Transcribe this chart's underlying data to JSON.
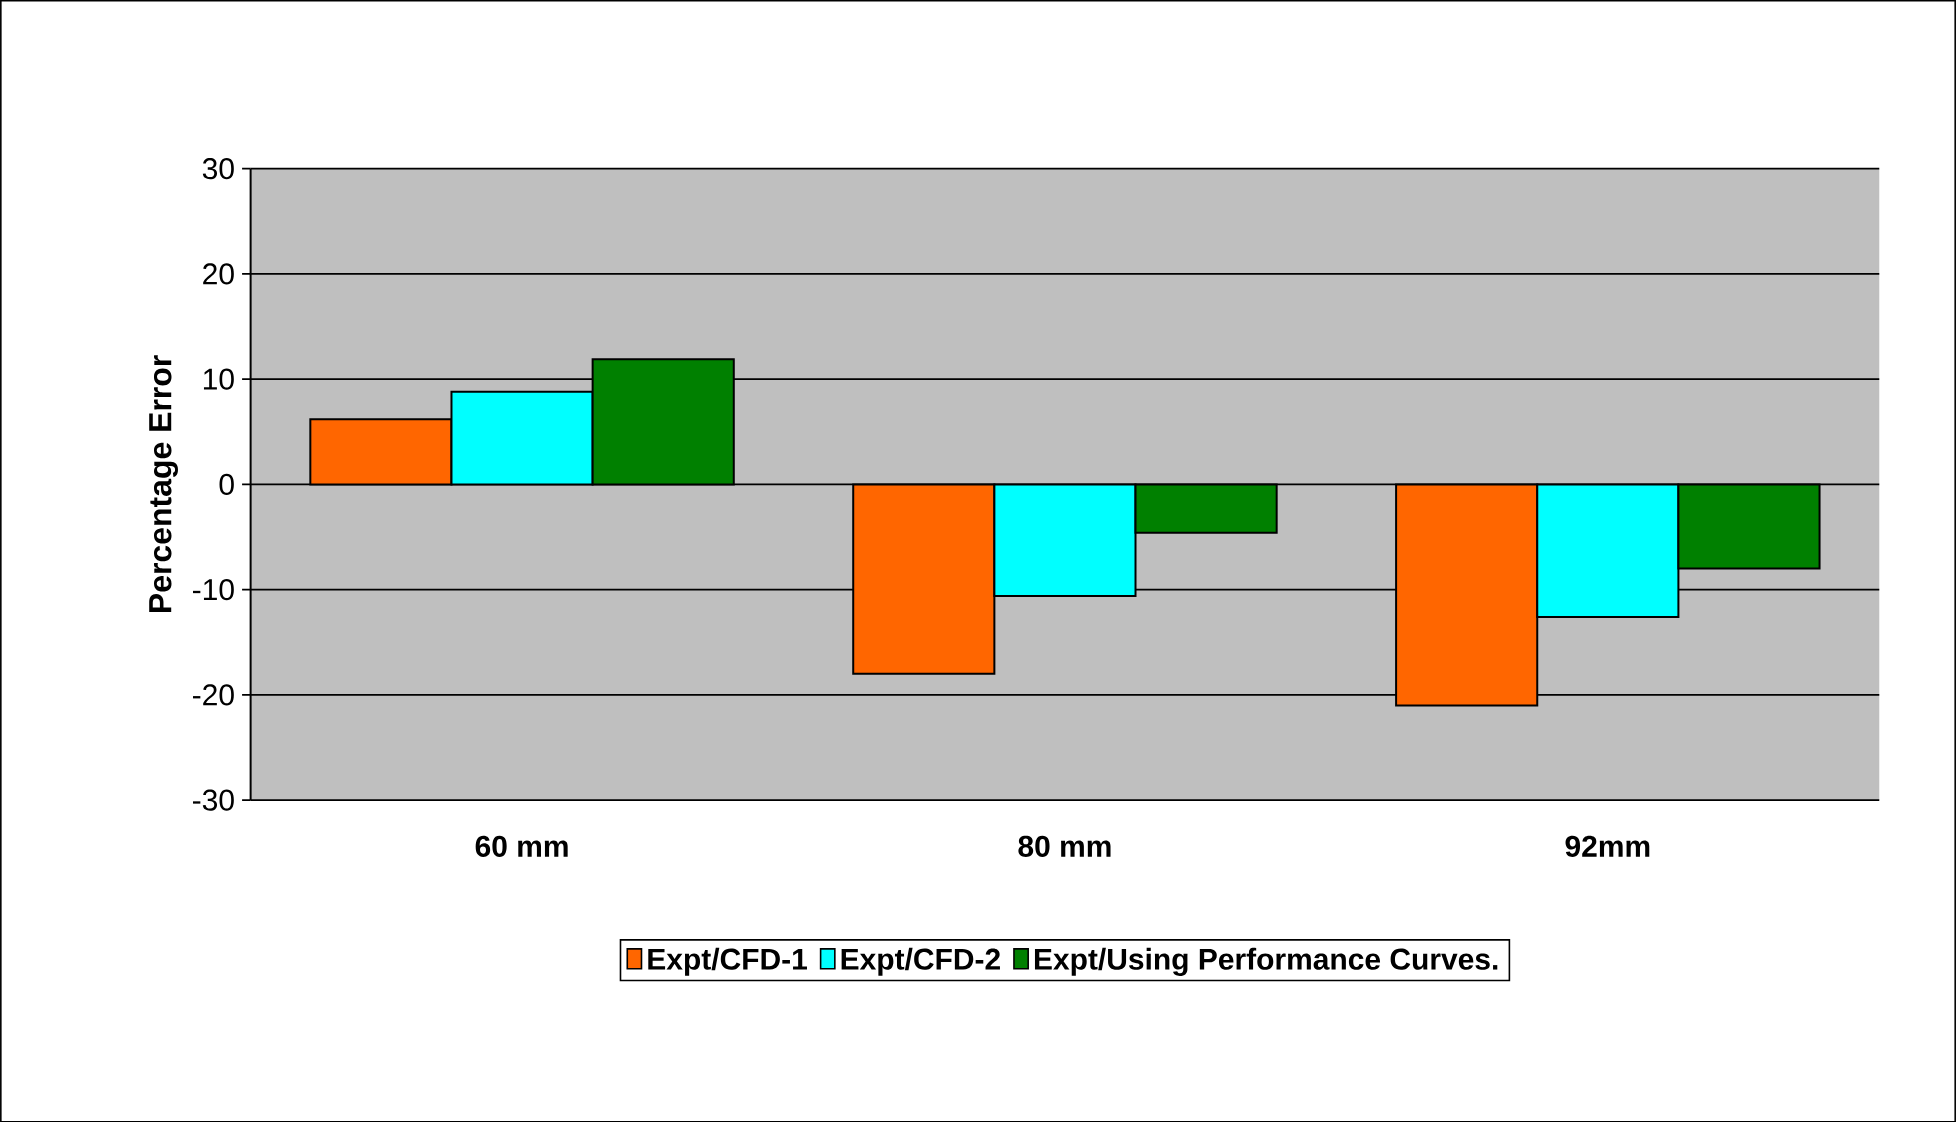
{
  "chart_data": {
    "type": "bar",
    "ylabel": "Percentage Error",
    "categories": [
      "60 mm",
      "80 mm",
      "92mm"
    ],
    "series": [
      {
        "name": "Expt/CFD-1",
        "color": "#ff6600",
        "values": [
          6.2,
          -18.0,
          -21.0
        ]
      },
      {
        "name": "Expt/CFD-2",
        "color": "#00ffff",
        "values": [
          8.8,
          -10.6,
          -12.6
        ]
      },
      {
        "name": "Expt/Using Performance Curves.",
        "color": "#008000",
        "values": [
          11.9,
          -4.6,
          -8.0
        ]
      }
    ],
    "ylim": [
      -30,
      30
    ],
    "yticks": [
      -30,
      -20,
      -10,
      0,
      10,
      20,
      30
    ],
    "grid": "y",
    "legend": "bottom"
  }
}
